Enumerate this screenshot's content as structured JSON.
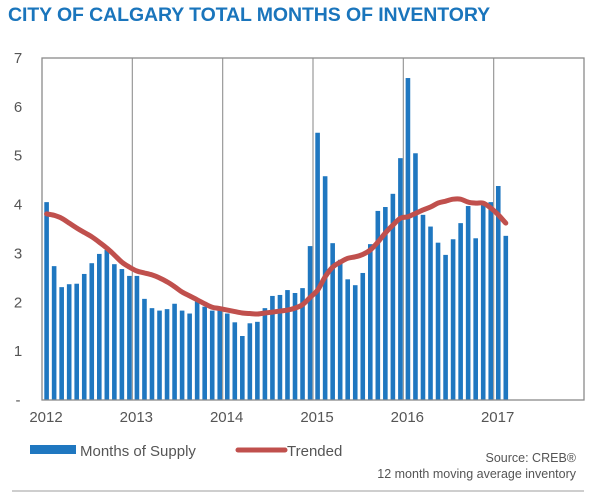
{
  "title": "CITY OF CALGARY TOTAL MONTHS OF INVENTORY",
  "chart_data": {
    "type": "bar",
    "title": "CITY OF CALGARY TOTAL MONTHS OF INVENTORY",
    "xlabel": "",
    "ylabel": "",
    "ylim": [
      0,
      7
    ],
    "yticks": [
      "-",
      "1",
      "2",
      "3",
      "4",
      "5",
      "6",
      "7"
    ],
    "xticks": [
      "2012",
      "2013",
      "2014",
      "2015",
      "2016",
      "2017"
    ],
    "x_range_years": [
      2012,
      2018
    ],
    "grid": "vertical-at-year",
    "legend_placement": "bottom",
    "start": "2012-01",
    "categories": [
      "2012-01",
      "2012-02",
      "2012-03",
      "2012-04",
      "2012-05",
      "2012-06",
      "2012-07",
      "2012-08",
      "2012-09",
      "2012-10",
      "2012-11",
      "2012-12",
      "2013-01",
      "2013-02",
      "2013-03",
      "2013-04",
      "2013-05",
      "2013-06",
      "2013-07",
      "2013-08",
      "2013-09",
      "2013-10",
      "2013-11",
      "2013-12",
      "2014-01",
      "2014-02",
      "2014-03",
      "2014-04",
      "2014-05",
      "2014-06",
      "2014-07",
      "2014-08",
      "2014-09",
      "2014-10",
      "2014-11",
      "2014-12",
      "2015-01",
      "2015-02",
      "2015-03",
      "2015-04",
      "2015-05",
      "2015-06",
      "2015-07",
      "2015-08",
      "2015-09",
      "2015-10",
      "2015-11",
      "2015-12",
      "2016-01",
      "2016-02",
      "2016-03",
      "2016-04",
      "2016-05",
      "2016-06",
      "2016-07",
      "2016-08",
      "2016-09",
      "2016-10",
      "2016-11",
      "2016-12",
      "2017-01",
      "2017-02"
    ],
    "series": [
      {
        "name": "Months of Supply",
        "kind": "bar",
        "color": "#1f77c0",
        "values": [
          4.05,
          2.74,
          2.31,
          2.37,
          2.38,
          2.58,
          2.8,
          2.99,
          3.07,
          2.78,
          2.68,
          2.54,
          2.54,
          2.07,
          1.88,
          1.83,
          1.86,
          1.97,
          1.83,
          1.77,
          2.02,
          1.91,
          1.83,
          1.91,
          1.77,
          1.59,
          1.31,
          1.57,
          1.6,
          1.88,
          2.13,
          2.15,
          2.25,
          2.19,
          2.29,
          3.15,
          5.47,
          4.58,
          3.21,
          2.87,
          2.47,
          2.35,
          2.6,
          3.19,
          3.87,
          3.95,
          4.22,
          4.95,
          6.59,
          5.05,
          3.79,
          3.55,
          3.22,
          2.97,
          3.29,
          3.62,
          3.97,
          3.31,
          4.05,
          4.05,
          4.38,
          3.36
        ]
      },
      {
        "name": "Trended",
        "kind": "line",
        "color": "#c0504d",
        "values": [
          3.81,
          3.78,
          3.72,
          3.62,
          3.52,
          3.43,
          3.34,
          3.23,
          3.11,
          2.97,
          2.82,
          2.72,
          2.64,
          2.6,
          2.56,
          2.5,
          2.42,
          2.32,
          2.21,
          2.13,
          2.05,
          1.97,
          1.9,
          1.87,
          1.84,
          1.81,
          1.78,
          1.77,
          1.76,
          1.78,
          1.8,
          1.82,
          1.84,
          1.88,
          1.95,
          2.1,
          2.25,
          2.52,
          2.72,
          2.82,
          2.9,
          2.93,
          2.98,
          3.07,
          3.23,
          3.42,
          3.58,
          3.72,
          3.75,
          3.82,
          3.89,
          3.95,
          4.03,
          4.07,
          4.11,
          4.11,
          4.05,
          4.03,
          4.03,
          3.93,
          3.79,
          3.62
        ]
      }
    ]
  },
  "legend": {
    "items": [
      {
        "label": "Months of Supply",
        "color": "#1f77c0"
      },
      {
        "label": "Trended",
        "color": "#c0504d"
      }
    ]
  },
  "source": {
    "line1": "Source: CREB®",
    "line2": "12 month moving average inventory"
  }
}
